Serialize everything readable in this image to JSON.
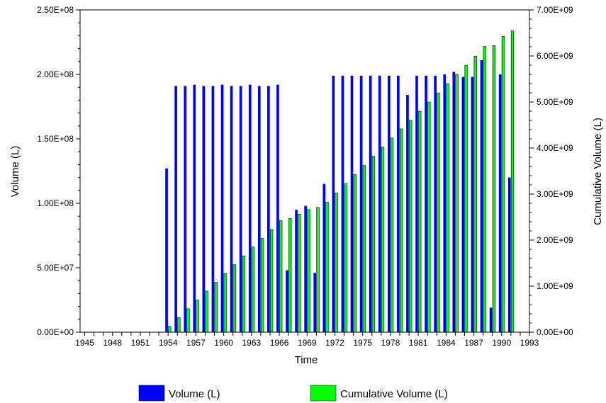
{
  "chart_data": {
    "type": "bar",
    "xlabel": "Time",
    "ylabel": "Volume (L)",
    "y2label": "Cumulative Volume (L)",
    "xlim": [
      1944.5,
      1993
    ],
    "ylim": [
      0,
      250000000
    ],
    "y2lim": [
      0,
      7000000000
    ],
    "x_ticks": [
      "1945",
      "1948",
      "1951",
      "1954",
      "1957",
      "1960",
      "1963",
      "1966",
      "1969",
      "1972",
      "1975",
      "1978",
      "1981",
      "1984",
      "1987",
      "1990",
      "1993"
    ],
    "y_ticks": [
      "0.00E+00",
      "5.00E+07",
      "1.00E+08",
      "1.50E+08",
      "2.00E+08",
      "2.50E+08"
    ],
    "y2_ticks": [
      "0.00E+00",
      "1.00E+09",
      "2.00E+09",
      "3.00E+09",
      "4.00E+09",
      "5.00E+09",
      "6.00E+09",
      "7.00E+09"
    ],
    "grid": false,
    "legend_position": "bottom",
    "x": [
      1945,
      1946,
      1947,
      1948,
      1949,
      1950,
      1951,
      1952,
      1953,
      1954,
      1955,
      1956,
      1957,
      1958,
      1959,
      1960,
      1961,
      1962,
      1963,
      1964,
      1965,
      1966,
      1967,
      1968,
      1969,
      1970,
      1971,
      1972,
      1973,
      1974,
      1975,
      1976,
      1977,
      1978,
      1979,
      1980,
      1981,
      1982,
      1983,
      1984,
      1985,
      1986,
      1987,
      1988,
      1989,
      1990,
      1991
    ],
    "series": [
      {
        "name": "Volume (L)",
        "axis": "left",
        "color": "#0000ff",
        "values": [
          0,
          0,
          0,
          0,
          0,
          0,
          0,
          0,
          0,
          127000000,
          191000000,
          191000000,
          192000000,
          191000000,
          191000000,
          192000000,
          191000000,
          191000000,
          192000000,
          191000000,
          191000000,
          192000000,
          48000000,
          95000000,
          98000000,
          46000000,
          115000000,
          199000000,
          199000000,
          199000000,
          199000000,
          199000000,
          199000000,
          199000000,
          199000000,
          184000000,
          199000000,
          199000000,
          199000000,
          200000000,
          202000000,
          198000000,
          198000000,
          211000000,
          19000000,
          200000000,
          120000000
        ]
      },
      {
        "name": "Cumulative Volume (L)",
        "axis": "right",
        "color": "#00ff00",
        "values": [
          0,
          0,
          0,
          0,
          0,
          0,
          0,
          0,
          0,
          127000000,
          318000000,
          509000000,
          701000000,
          892000000,
          1083000000,
          1275000000,
          1466000000,
          1657000000,
          1849000000,
          2040000000,
          2231000000,
          2423000000,
          2471000000,
          2566000000,
          2664000000,
          2710000000,
          2825000000,
          3024000000,
          3223000000,
          3422000000,
          3621000000,
          3820000000,
          4019000000,
          4218000000,
          4417000000,
          4601000000,
          4800000000,
          4999000000,
          5198000000,
          5398000000,
          5600000000,
          5798000000,
          5996000000,
          6207000000,
          6226000000,
          6426000000,
          6546000000
        ]
      }
    ]
  }
}
